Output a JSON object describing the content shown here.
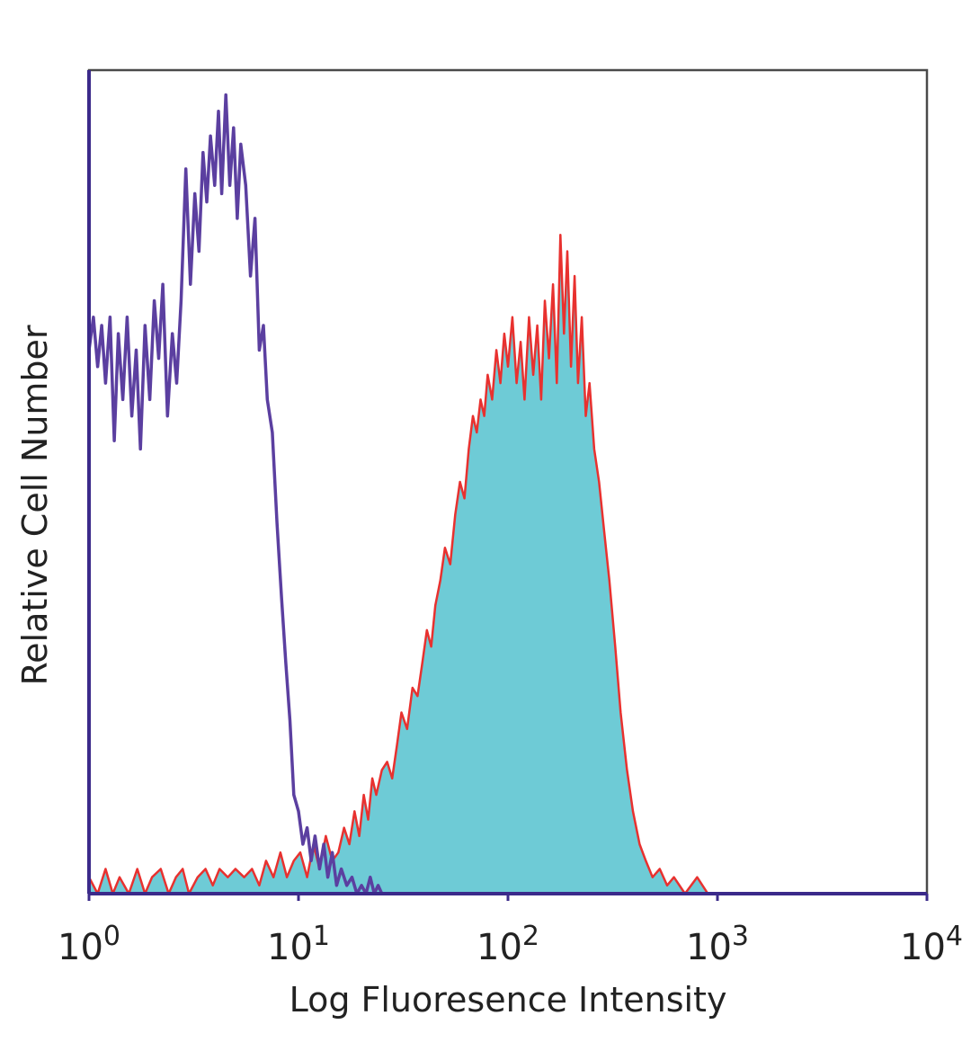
{
  "chart_data": {
    "type": "area",
    "title": "",
    "xlabel": "Log Fluoresence Intensity",
    "ylabel": "Relative Cell Number",
    "x_scale": "log",
    "xlim": [
      1,
      10000
    ],
    "ylim": [
      0,
      1
    ],
    "grid": false,
    "legend": "none",
    "x_ticks": [
      {
        "value": 1,
        "base": "10",
        "exp": "0"
      },
      {
        "value": 10,
        "base": "10",
        "exp": "1"
      },
      {
        "value": 100,
        "base": "10",
        "exp": "2"
      },
      {
        "value": 1000,
        "base": "10",
        "exp": "3"
      },
      {
        "value": 10000,
        "base": "10",
        "exp": "4"
      }
    ],
    "series": [
      {
        "style": "outline",
        "color": "#5b3fa0",
        "x": [
          1.0,
          1.05,
          1.1,
          1.15,
          1.2,
          1.26,
          1.32,
          1.38,
          1.45,
          1.52,
          1.6,
          1.68,
          1.76,
          1.85,
          1.95,
          2.05,
          2.15,
          2.25,
          2.37,
          2.5,
          2.62,
          2.75,
          2.9,
          3.05,
          3.2,
          3.35,
          3.5,
          3.65,
          3.8,
          3.98,
          4.15,
          4.3,
          4.5,
          4.7,
          4.9,
          5.1,
          5.3,
          5.6,
          5.9,
          6.2,
          6.5,
          6.8,
          7.1,
          7.5,
          7.9,
          8.3,
          8.7,
          9.1,
          9.5,
          10.0,
          10.5,
          11.0,
          11.5,
          12.0,
          12.6,
          13.2,
          13.8,
          14.5,
          15.2,
          16.0,
          17.0,
          18.0,
          19.0,
          20.0,
          21.0,
          22.0,
          23.0,
          24.0,
          25.0,
          26.0,
          10000
        ],
        "y": [
          0.66,
          0.7,
          0.64,
          0.69,
          0.62,
          0.7,
          0.55,
          0.68,
          0.6,
          0.7,
          0.58,
          0.66,
          0.54,
          0.69,
          0.6,
          0.72,
          0.65,
          0.74,
          0.58,
          0.68,
          0.62,
          0.72,
          0.88,
          0.74,
          0.85,
          0.78,
          0.9,
          0.84,
          0.92,
          0.86,
          0.95,
          0.85,
          0.97,
          0.86,
          0.93,
          0.82,
          0.91,
          0.86,
          0.75,
          0.82,
          0.66,
          0.69,
          0.6,
          0.56,
          0.45,
          0.36,
          0.28,
          0.21,
          0.12,
          0.1,
          0.06,
          0.08,
          0.04,
          0.07,
          0.03,
          0.06,
          0.02,
          0.05,
          0.01,
          0.03,
          0.01,
          0.02,
          0.0,
          0.01,
          0.0,
          0.02,
          0.0,
          0.01,
          0.0,
          0.0,
          0.0
        ]
      },
      {
        "style": "filled",
        "color": "#e8312f",
        "fill": "#6ecbd6",
        "x": [
          1.0,
          1.1,
          1.2,
          1.3,
          1.4,
          1.55,
          1.7,
          1.85,
          2.0,
          2.2,
          2.4,
          2.6,
          2.8,
          3.0,
          3.3,
          3.6,
          3.9,
          4.2,
          4.6,
          5.0,
          5.5,
          6.0,
          6.5,
          7.0,
          7.6,
          8.2,
          8.8,
          9.5,
          10.2,
          11.0,
          11.8,
          12.6,
          13.5,
          14.5,
          15.5,
          16.5,
          17.5,
          18.5,
          19.5,
          20.5,
          21.5,
          22.5,
          23.5,
          25.0,
          26.5,
          28.0,
          29.5,
          31.0,
          33.0,
          35.0,
          37.0,
          39.0,
          41.0,
          43.0,
          45.0,
          47.5,
          50.0,
          53.0,
          56.0,
          59.0,
          62.0,
          65.0,
          68.0,
          71.0,
          74.0,
          77.0,
          80.0,
          84.0,
          88.0,
          92.0,
          96.0,
          100.0,
          105.0,
          110.0,
          115.0,
          120.0,
          126.0,
          132.0,
          138.0,
          144.0,
          150.0,
          157.0,
          164.0,
          171.0,
          178.0,
          185.0,
          192.0,
          200.0,
          208.0,
          216.0,
          225.0,
          235.0,
          245.0,
          258.0,
          272.0,
          288.0,
          305.0,
          325.0,
          345.0,
          370.0,
          395.0,
          425.0,
          455.0,
          490.0,
          530.0,
          575.0,
          620.0,
          700.0,
          800.0,
          900.0,
          10000
        ],
        "y": [
          0.02,
          0.0,
          0.03,
          0.0,
          0.02,
          0.0,
          0.03,
          0.0,
          0.02,
          0.03,
          0.0,
          0.02,
          0.03,
          0.0,
          0.02,
          0.03,
          0.01,
          0.03,
          0.02,
          0.03,
          0.02,
          0.03,
          0.01,
          0.04,
          0.02,
          0.05,
          0.02,
          0.04,
          0.05,
          0.02,
          0.06,
          0.03,
          0.07,
          0.04,
          0.05,
          0.08,
          0.06,
          0.1,
          0.07,
          0.12,
          0.09,
          0.14,
          0.12,
          0.15,
          0.16,
          0.14,
          0.18,
          0.22,
          0.2,
          0.25,
          0.24,
          0.28,
          0.32,
          0.3,
          0.35,
          0.38,
          0.42,
          0.4,
          0.46,
          0.5,
          0.48,
          0.54,
          0.58,
          0.56,
          0.6,
          0.58,
          0.63,
          0.6,
          0.66,
          0.62,
          0.68,
          0.64,
          0.7,
          0.62,
          0.67,
          0.6,
          0.7,
          0.63,
          0.69,
          0.6,
          0.72,
          0.65,
          0.74,
          0.62,
          0.8,
          0.68,
          0.78,
          0.64,
          0.75,
          0.62,
          0.7,
          0.58,
          0.62,
          0.54,
          0.5,
          0.44,
          0.38,
          0.3,
          0.22,
          0.15,
          0.1,
          0.06,
          0.04,
          0.02,
          0.03,
          0.01,
          0.02,
          0.0,
          0.02,
          0.0,
          0.0
        ]
      }
    ]
  }
}
